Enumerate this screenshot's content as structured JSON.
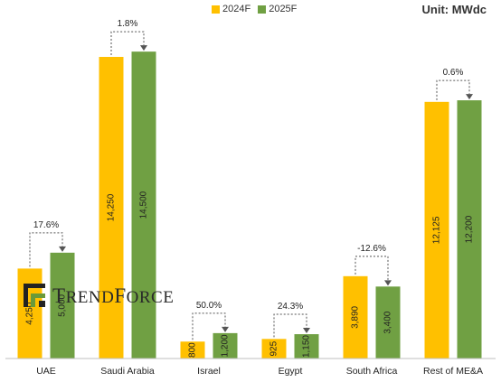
{
  "unit_label": "Unit: MWdc",
  "logo": {
    "text": "TrendForce"
  },
  "colors": {
    "s2024": "#FFC000",
    "s2025": "#70A043",
    "arrow": "#555555"
  },
  "chart_data": {
    "type": "bar",
    "title": "",
    "xlabel": "",
    "ylabel": "",
    "ylim": [
      0,
      16000
    ],
    "legend_position": "top",
    "grid": false,
    "categories": [
      "UAE",
      "Saudi Arabia",
      "Israel",
      "Egypt",
      "South Africa",
      "Rest of ME&A"
    ],
    "series": [
      {
        "name": "2024F",
        "values": [
          4250,
          14250,
          800,
          925,
          3890,
          12125
        ],
        "labels": [
          "4,250",
          "14,250",
          "800",
          "925",
          "3,890",
          "12,125"
        ]
      },
      {
        "name": "2025F",
        "values": [
          5000,
          14500,
          1200,
          1150,
          3400,
          12200
        ],
        "labels": [
          "5,000",
          "14,500",
          "1,200",
          "1,150",
          "3,400",
          "12,200"
        ]
      }
    ],
    "growth_labels": [
      "17.6%",
      "1.8%",
      "50.0%",
      "24.3%",
      "-12.6%",
      "0.6%"
    ]
  }
}
